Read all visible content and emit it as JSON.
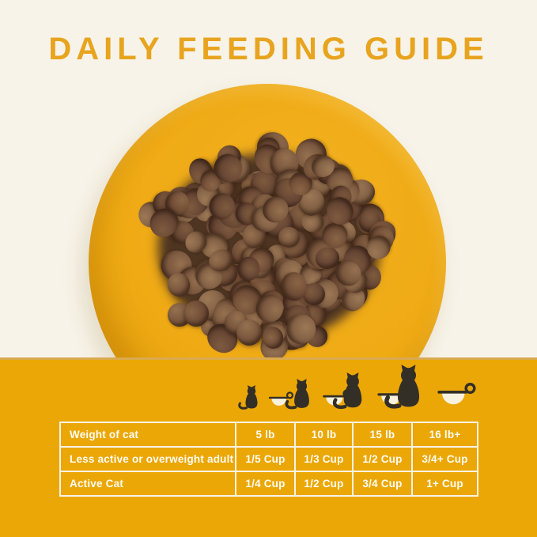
{
  "title": "DAILY FEEDING GUIDE",
  "colors": {
    "background_cream": "#F7F3E8",
    "title_orange": "#E8A41F",
    "band_orange": "#EBA705",
    "band_top_line": "#D9AA4F",
    "plate_orange": "#EFAA14",
    "table_border_white": "#F8F3E6",
    "table_text_white": "#FFFDF6",
    "cat_silhouette": "#332E26",
    "cup_fill_cream": "#F7F1DE",
    "kibble_brown": "#6F4C36"
  },
  "icons": {
    "cat_icon": "cat-silhouette-icon",
    "cup_icon": "measuring-cup-icon",
    "pairs": [
      {
        "size": "extra-small"
      },
      {
        "size": "small"
      },
      {
        "size": "medium"
      },
      {
        "size": "large"
      }
    ]
  },
  "table": {
    "weight_row": {
      "label": "Weight of cat",
      "values": [
        "5 lb",
        "10 lb",
        "15 lb",
        "16 lb+"
      ]
    },
    "rows": [
      {
        "label": "Less active or overweight adult",
        "values": [
          "1/5 Cup",
          "1/3 Cup",
          "1/2 Cup",
          "3/4+ Cup"
        ]
      },
      {
        "label": "Active Cat",
        "values": [
          "1/4 Cup",
          "1/2 Cup",
          "3/4 Cup",
          "1+ Cup"
        ]
      }
    ]
  },
  "chart_data": {
    "type": "table",
    "columns": [
      "Weight of cat",
      "5 lb",
      "10 lb",
      "15 lb",
      "16 lb+"
    ],
    "rows": [
      [
        "Less active or overweight adult",
        "1/5 Cup",
        "1/3 Cup",
        "1/2 Cup",
        "3/4+ Cup"
      ],
      [
        "Active Cat",
        "1/4 Cup",
        "1/2 Cup",
        "3/4 Cup",
        "1+ Cup"
      ]
    ]
  }
}
